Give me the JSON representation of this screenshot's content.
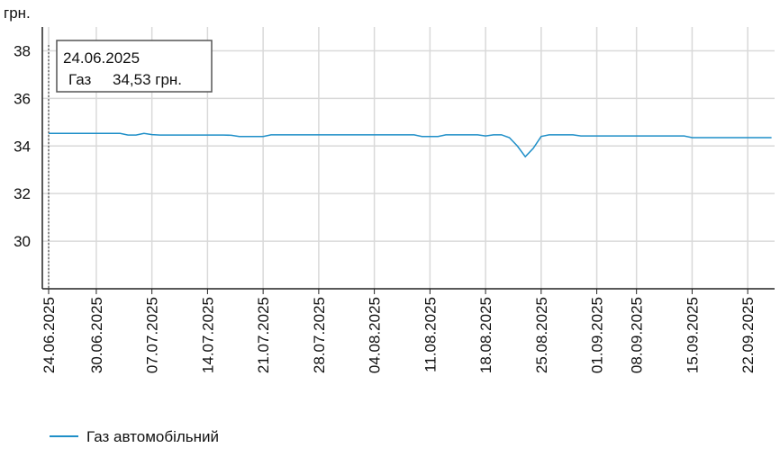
{
  "chart_data": {
    "type": "line",
    "y_unit": "грн.",
    "categories": [
      "24.06.2025",
      null,
      null,
      null,
      null,
      null,
      "30.06.2025",
      null,
      null,
      null,
      null,
      null,
      null,
      "07.07.2025",
      null,
      null,
      null,
      null,
      null,
      null,
      "14.07.2025",
      null,
      null,
      null,
      null,
      null,
      null,
      "21.07.2025",
      null,
      null,
      null,
      null,
      null,
      null,
      "28.07.2025",
      null,
      null,
      null,
      null,
      null,
      null,
      "04.08.2025",
      null,
      null,
      null,
      null,
      null,
      null,
      "11.08.2025",
      null,
      null,
      null,
      null,
      null,
      null,
      "18.08.2025",
      null,
      null,
      null,
      null,
      null,
      null,
      "25.08.2025",
      null,
      null,
      null,
      null,
      null,
      null,
      "01.09.2025",
      null,
      null,
      null,
      null,
      "08.09.2025",
      null,
      null,
      null,
      null,
      null,
      null,
      "15.09.2025",
      null,
      null,
      null,
      null,
      null,
      null,
      "22.09.2025",
      null,
      null,
      null
    ],
    "series": [
      {
        "name": "Газ автомобільний",
        "color": "#1f8fc8",
        "values": [
          34.53,
          34.53,
          34.53,
          34.53,
          34.53,
          34.53,
          34.53,
          34.53,
          34.53,
          34.53,
          34.46,
          34.46,
          34.53,
          34.48,
          34.46,
          34.46,
          34.46,
          34.46,
          34.46,
          34.46,
          34.46,
          34.46,
          34.46,
          34.45,
          34.4,
          34.4,
          34.4,
          34.4,
          34.47,
          34.47,
          34.47,
          34.47,
          34.47,
          34.47,
          34.47,
          34.47,
          34.47,
          34.47,
          34.47,
          34.47,
          34.47,
          34.47,
          34.47,
          34.47,
          34.47,
          34.47,
          34.47,
          34.4,
          34.4,
          34.4,
          34.47,
          34.47,
          34.47,
          34.47,
          34.47,
          34.42,
          34.47,
          34.47,
          34.35,
          34.0,
          33.55,
          33.9,
          34.4,
          34.47,
          34.47,
          34.47,
          34.47,
          34.42,
          34.42,
          34.42,
          34.42,
          34.42,
          34.42,
          34.42,
          34.42,
          34.42,
          34.42,
          34.42,
          34.42,
          34.42,
          34.42,
          34.35,
          34.35,
          34.35,
          34.35,
          34.35,
          34.35,
          34.35,
          34.35,
          34.35,
          34.35,
          34.35
        ]
      }
    ],
    "ylim": [
      28,
      39
    ],
    "yticks": [
      30,
      32,
      34,
      36,
      38
    ],
    "grid": true,
    "tooltip": {
      "title": "24.06.2025",
      "name": "Газ",
      "value_label": "34,53 грн."
    }
  }
}
